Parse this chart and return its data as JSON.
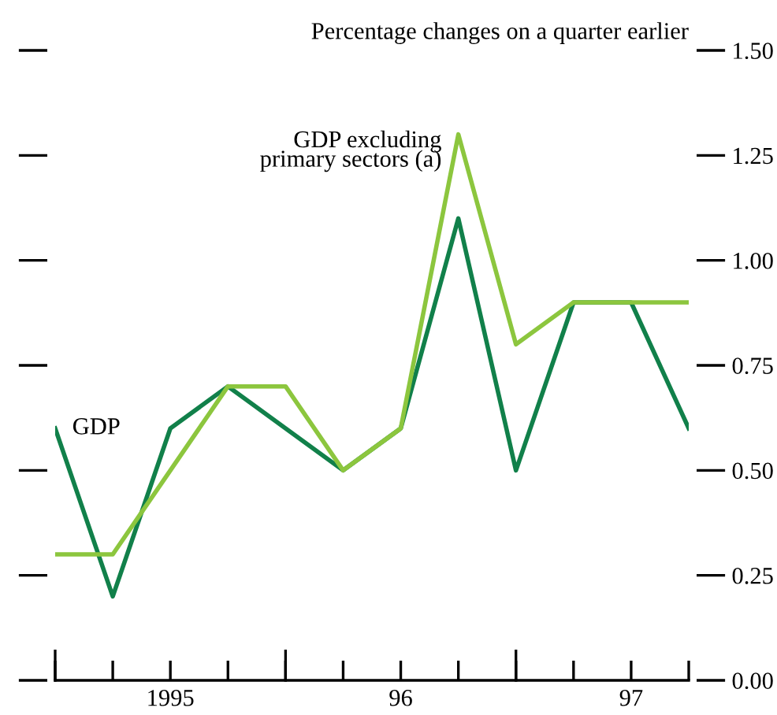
{
  "chart_data": {
    "type": "line",
    "ylabel": "Percentage changes on a quarter earlier",
    "categories": [
      null,
      null,
      "1995",
      null,
      null,
      null,
      "96",
      null,
      null,
      null,
      "97",
      null
    ],
    "series": [
      {
        "name": "GDP",
        "color": "#11804a",
        "values": [
          0.6,
          0.2,
          0.6,
          0.7,
          0.6,
          0.5,
          0.6,
          1.1,
          0.5,
          0.9,
          0.9,
          0.6
        ]
      },
      {
        "name": "GDP excluding\nprimary sectors (a)",
        "color": "#8cc63e",
        "values": [
          0.3,
          0.3,
          0.5,
          0.7,
          0.7,
          0.5,
          0.6,
          1.3,
          0.8,
          0.9,
          0.9,
          0.9
        ]
      }
    ],
    "ylim": [
      0,
      1.5
    ],
    "yticks": [
      {
        "value": 0,
        "label": "0.00"
      },
      {
        "value": 0.25,
        "label": "0.25"
      },
      {
        "value": 0.5,
        "label": "0.50"
      },
      {
        "value": 0.75,
        "label": "0.75"
      },
      {
        "value": 1.0,
        "label": "1.00"
      },
      {
        "value": 1.25,
        "label": "1.25"
      },
      {
        "value": 1.5,
        "label": "1.50"
      }
    ],
    "grid": false,
    "legend": false,
    "marker": "none",
    "line_style": "solid"
  }
}
